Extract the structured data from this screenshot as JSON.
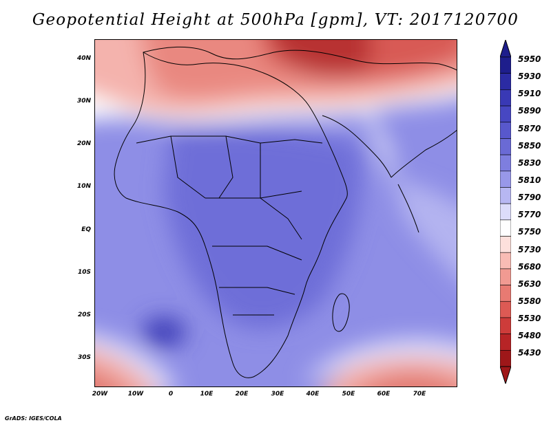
{
  "title": "Geopotential Height at 500hPa [gpm], VT: 2017120700",
  "footer": "GrADS: IGES/COLA",
  "axes": {
    "lat_labels": [
      "40N",
      "30N",
      "20N",
      "10N",
      "EQ",
      "10S",
      "20S",
      "30S"
    ],
    "lon_labels": [
      "20W",
      "10W",
      "0",
      "10E",
      "20E",
      "30E",
      "40E",
      "50E",
      "60E",
      "70E"
    ]
  },
  "colorbar": {
    "labels": [
      "5950",
      "5930",
      "5910",
      "5890",
      "5870",
      "5850",
      "5830",
      "5810",
      "5790",
      "5770",
      "5750",
      "5730",
      "5680",
      "5630",
      "5580",
      "5530",
      "5480",
      "5430"
    ],
    "colors": [
      "#1e1e8c",
      "#2b2ba3",
      "#3939b5",
      "#4747c2",
      "#5858cc",
      "#6a6ad5",
      "#7e7edf",
      "#9898e9",
      "#b7b7f2",
      "#dcdcfa",
      "#ffffff",
      "#fde0dc",
      "#f9bcb5",
      "#f19a92",
      "#e87a72",
      "#dd5a54",
      "#cd3c3a",
      "#b72426",
      "#9e1719"
    ]
  }
}
